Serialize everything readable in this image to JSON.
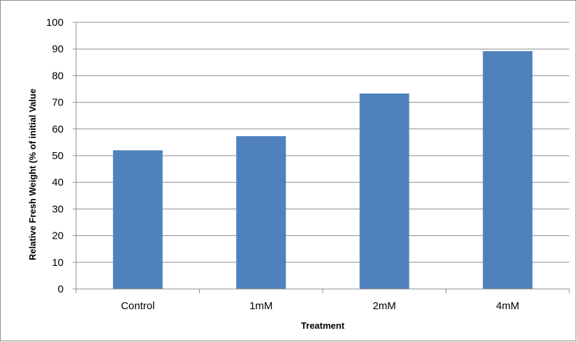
{
  "chart_data": {
    "type": "bar",
    "categories": [
      "Control",
      "1mM",
      "2mM",
      "4mM"
    ],
    "values": [
      52,
      57.3,
      73.3,
      89.2
    ],
    "xlabel": "Treatment",
    "ylabel": "Relative Fresh Weight (% of initial Value",
    "ylim": [
      0,
      100
    ],
    "yticks": [
      0,
      10,
      20,
      30,
      40,
      50,
      60,
      70,
      80,
      90,
      100
    ],
    "grid": true,
    "legend": "none",
    "bar_color": "#4f81bd"
  }
}
